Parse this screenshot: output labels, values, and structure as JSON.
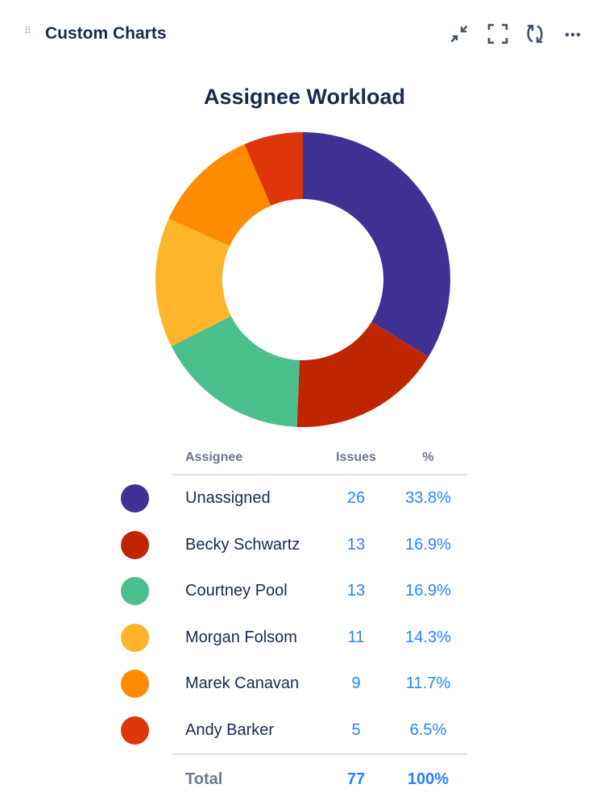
{
  "header": {
    "title": "Custom Charts",
    "icons": [
      "drag-handle-icon",
      "collapse-icon",
      "fullscreen-icon",
      "refresh-icon",
      "more-icon"
    ]
  },
  "chart_data": {
    "type": "pie",
    "style": "donut",
    "title": "Assignee Workload",
    "columns": [
      "Assignee",
      "Issues",
      "%"
    ],
    "slices": [
      {
        "label": "Unassigned",
        "value": 26,
        "percent": "33.8%",
        "color": "#403294"
      },
      {
        "label": "Becky Schwartz",
        "value": 13,
        "percent": "16.9%",
        "color": "#BF2600"
      },
      {
        "label": "Courtney Pool",
        "value": 13,
        "percent": "16.9%",
        "color": "#4BBF8C"
      },
      {
        "label": "Morgan Folsom",
        "value": 11,
        "percent": "14.3%",
        "color": "#FFB42A"
      },
      {
        "label": "Marek Canavan",
        "value": 9,
        "percent": "11.7%",
        "color": "#FF8B00"
      },
      {
        "label": "Andy Barker",
        "value": 5,
        "percent": "6.5%",
        "color": "#DE350B"
      }
    ],
    "total": {
      "label": "Total",
      "value": "77",
      "percent": "100%"
    }
  }
}
